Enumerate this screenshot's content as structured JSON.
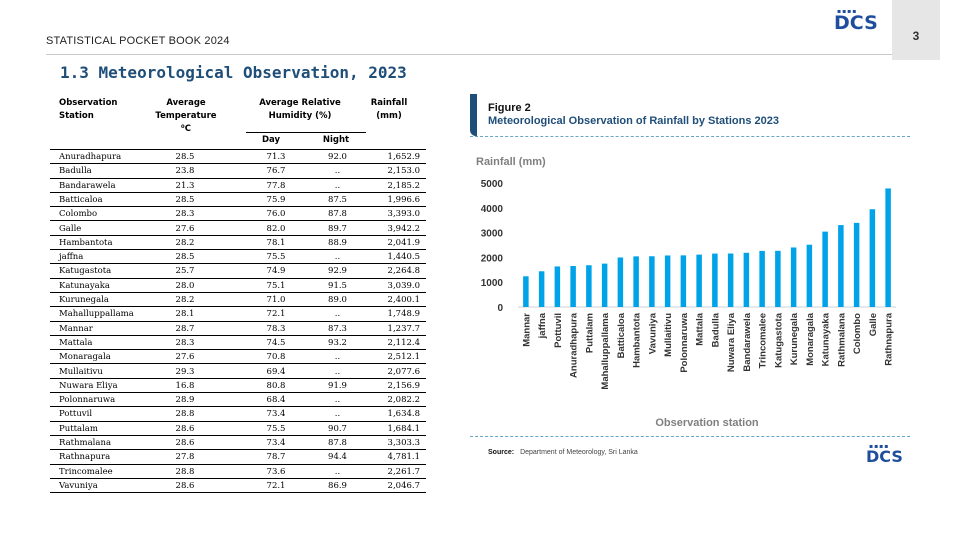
{
  "header": {
    "book_title": "STATISTICAL POCKET BOOK 2024",
    "page_number": "3",
    "logo": "DCS"
  },
  "section": {
    "title": "1.3  Meteorological Observation, 2023"
  },
  "table": {
    "headers": {
      "station": [
        "Observation",
        "Station"
      ],
      "temperature": [
        "Average",
        "Temperature",
        "⁰C"
      ],
      "humidity": [
        "Average Relative",
        "Humidity (%)"
      ],
      "rainfall": [
        "Rainfall",
        "(mm)"
      ],
      "day": "Day",
      "night": "Night"
    },
    "rows": [
      [
        "Anuradhapura",
        "28.5",
        "71.3",
        "92.0",
        "1,652.9"
      ],
      [
        "Badulla",
        "23.8",
        "76.7",
        "..",
        "2,153.0"
      ],
      [
        "Bandarawela",
        "21.3",
        "77.8",
        "..",
        "2,185.2"
      ],
      [
        "Batticaloa",
        "28.5",
        "75.9",
        "87.5",
        "1,996.6"
      ],
      [
        "Colombo",
        "28.3",
        "76.0",
        "87.8",
        "3,393.0"
      ],
      [
        "Galle",
        "27.6",
        "82.0",
        "89.7",
        "3,942.2"
      ],
      [
        "Hambantota",
        "28.2",
        "78.1",
        "88.9",
        "2,041.9"
      ],
      [
        "jaffna",
        "28.5",
        "75.5",
        "..",
        "1,440.5"
      ],
      [
        "Katugastota",
        "25.7",
        "74.9",
        "92.9",
        "2,264.8"
      ],
      [
        "Katunayaka",
        "28.0",
        "75.1",
        "91.5",
        "3,039.0"
      ],
      [
        "Kurunegala",
        "28.2",
        "71.0",
        "89.0",
        "2,400.1"
      ],
      [
        "Mahalluppallama",
        "28.1",
        "72.1",
        "..",
        "1,748.9"
      ],
      [
        "Mannar",
        "28.7",
        "78.3",
        "87.3",
        "1,237.7"
      ],
      [
        "Mattala",
        "28.3",
        "74.5",
        "93.2",
        "2,112.4"
      ],
      [
        "Monaragala",
        "27.6",
        "70.8",
        "..",
        "2,512.1"
      ],
      [
        "Mullaitivu",
        "29.3",
        "69.4",
        "..",
        "2,077.6"
      ],
      [
        "Nuwara Eliya",
        "16.8",
        "80.8",
        "91.9",
        "2,156.9"
      ],
      [
        "Polonnaruwa",
        "28.9",
        "68.4",
        "..",
        "2,082.2"
      ],
      [
        "Pottuvil",
        "28.8",
        "73.4",
        "..",
        "1,634.8"
      ],
      [
        "Puttalam",
        "28.6",
        "75.5",
        "90.7",
        "1,684.1"
      ],
      [
        "Rathmalana",
        "28.6",
        "73.4",
        "87.8",
        "3,303.3"
      ],
      [
        "Rathnapura",
        "27.8",
        "78.7",
        "94.4",
        "4,781.1"
      ],
      [
        "Trincomalee",
        "28.8",
        "73.6",
        "..",
        "2,261.7"
      ],
      [
        "Vavuniya",
        "28.6",
        "72.1",
        "86.9",
        "2,046.7"
      ]
    ]
  },
  "figure": {
    "label": "Figure 2",
    "title": "Meteorological Observation of Rainfall by Stations 2023",
    "source_label": "Source:",
    "source_text": "Department of Meteorology, Sri Lanka"
  },
  "chart_data": {
    "type": "bar",
    "title": "",
    "ylabel": "Rainfall (mm)",
    "xlabel": "Observation station",
    "ylim": [
      0,
      5000
    ],
    "yticks": [
      0,
      1000,
      2000,
      3000,
      4000,
      5000
    ],
    "bar_color": "#00a2e8",
    "grid": false,
    "categories": [
      "Mannar",
      "jaffna",
      "Pottuvil",
      "Anuradhapura",
      "Puttalam",
      "Mahalluppallama",
      "Batticaloa",
      "Hambantota",
      "Vavuniya",
      "Mullaitivu",
      "Polonnaruwa",
      "Mattala",
      "Badulla",
      "Nuwara Eliya",
      "Bandarawela",
      "Trincomalee",
      "Katugastota",
      "Kurunegala",
      "Monaragala",
      "Katunayaka",
      "Rathmalana",
      "Colombo",
      "Galle",
      "Rathnapura"
    ],
    "values": [
      1237.7,
      1440.5,
      1634.8,
      1652.9,
      1684.1,
      1748.9,
      1996.6,
      2041.9,
      2046.7,
      2077.6,
      2082.2,
      2112.4,
      2153.0,
      2156.9,
      2185.2,
      2261.7,
      2264.8,
      2400.1,
      2512.1,
      3039.0,
      3303.3,
      3393.0,
      3942.2,
      4781.1
    ]
  }
}
